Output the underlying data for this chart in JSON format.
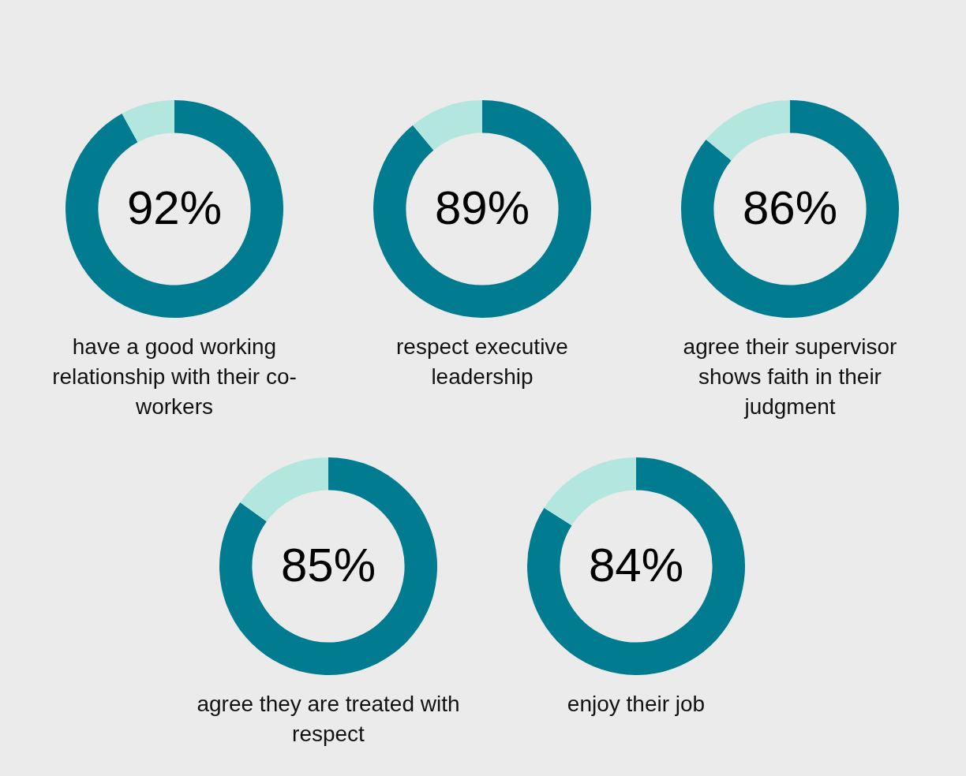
{
  "chart_data": [
    {
      "type": "donut",
      "title": "have a good working relationship with their co-workers",
      "categories": [
        null,
        null
      ],
      "values": [
        92,
        8
      ],
      "colors": [
        "#007b8f",
        "#b3e6df"
      ],
      "value_labels": [
        "92%",
        null
      ],
      "legend": false
    },
    {
      "type": "donut",
      "title": "respect executive leadership",
      "categories": [
        null,
        null
      ],
      "values": [
        89,
        11
      ],
      "colors": [
        "#007b8f",
        "#b3e6df"
      ],
      "value_labels": [
        "89%",
        null
      ],
      "legend": false
    },
    {
      "type": "donut",
      "title": "agree their supervisor shows faith in their judgment",
      "categories": [
        null,
        null
      ],
      "values": [
        86,
        14
      ],
      "colors": [
        "#007b8f",
        "#b3e6df"
      ],
      "value_labels": [
        "86%",
        null
      ],
      "legend": false
    },
    {
      "type": "donut",
      "title": "agree they are treated with respect",
      "categories": [
        null,
        null
      ],
      "values": [
        85,
        15
      ],
      "colors": [
        "#007b8f",
        "#b3e6df"
      ],
      "value_labels": [
        "85%",
        null
      ],
      "legend": false
    },
    {
      "type": "donut",
      "title": "enjoy their job",
      "categories": [
        null,
        null
      ],
      "values": [
        84,
        16
      ],
      "colors": [
        "#007b8f",
        "#b3e6df"
      ],
      "value_labels": [
        "84%",
        null
      ],
      "legend": false
    }
  ]
}
